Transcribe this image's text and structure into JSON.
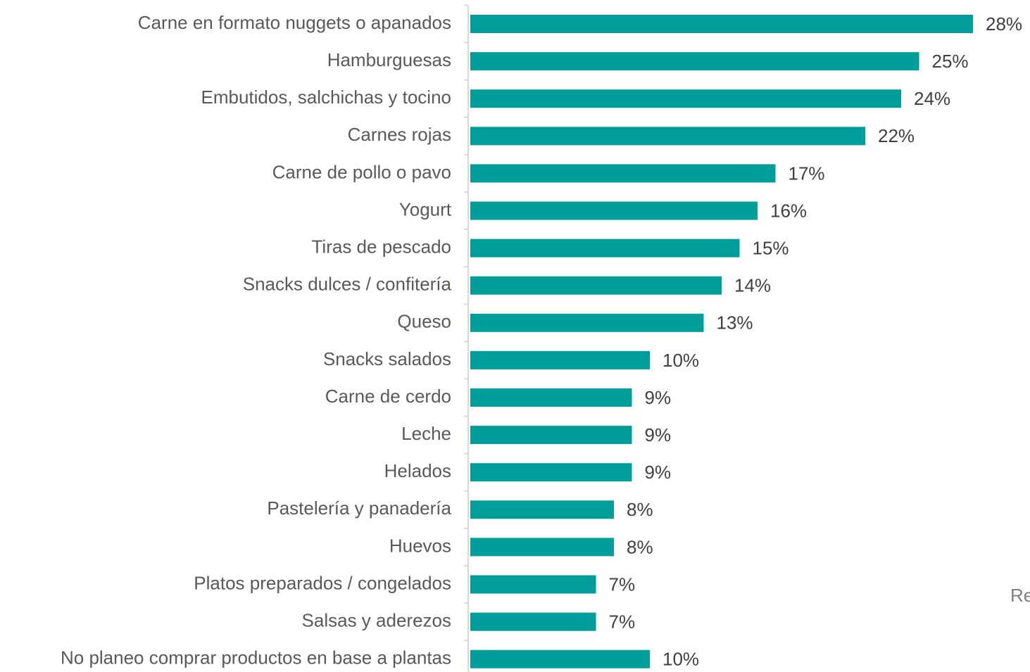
{
  "chart_data": {
    "type": "bar",
    "orientation": "horizontal",
    "categories": [
      "Carne en formato nuggets o apanados",
      "Hamburguesas",
      "Embutidos, salchichas y tocino",
      "Carnes rojas",
      "Carne de pollo o pavo",
      "Yogurt",
      "Tiras de pescado",
      "Snacks dulces / confitería",
      "Queso",
      "Snacks salados",
      "Carne de cerdo",
      "Leche",
      "Helados",
      "Pastelería y panadería",
      "Huevos",
      "Platos preparados / congelados",
      "Salsas y aderezos",
      "No planeo comprar productos en base a plantas"
    ],
    "values": [
      28,
      25,
      24,
      22,
      17,
      16,
      15,
      14,
      13,
      10,
      9,
      9,
      9,
      8,
      8,
      7,
      7,
      10
    ],
    "value_labels": [
      "28%",
      "25%",
      "24%",
      "22%",
      "17%",
      "16%",
      "15%",
      "14%",
      "13%",
      "10%",
      "9%",
      "9%",
      "9%",
      "8%",
      "8%",
      "7%",
      "7%",
      "10%"
    ],
    "color": "#009e9a",
    "xlim": [
      0,
      28
    ],
    "annotations": [
      "Re"
    ]
  }
}
